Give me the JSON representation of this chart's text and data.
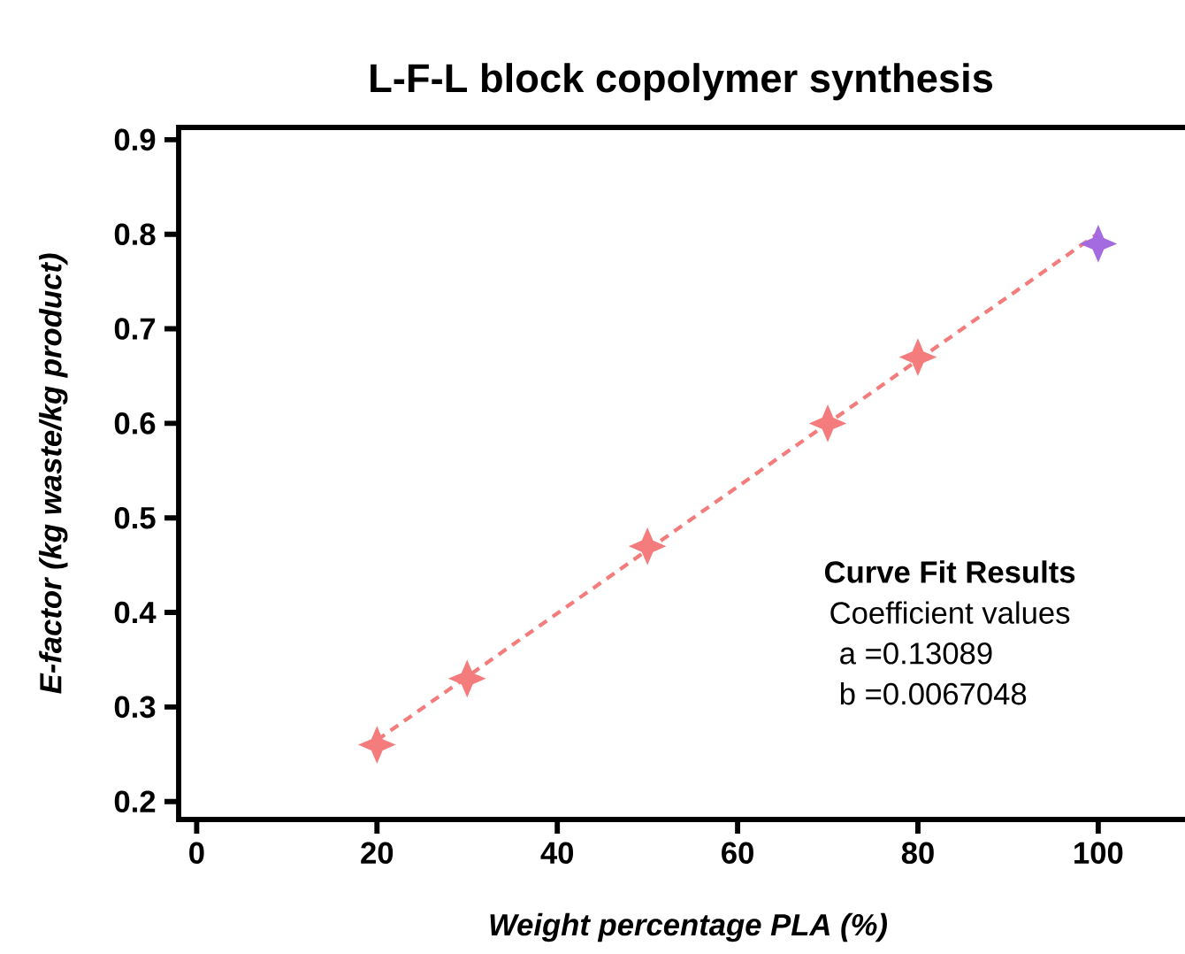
{
  "chart_data": {
    "type": "scatter",
    "title": "L-F-L block copolymer synthesis",
    "xlabel": "Weight percentage PLA (%)",
    "ylabel": "E-factor (kg waste/kg product)",
    "xlim": [
      -2,
      111
    ],
    "ylim": [
      0.181,
      0.913
    ],
    "xticks": [
      0,
      20,
      40,
      60,
      80,
      100
    ],
    "yticks": [
      0.2,
      0.3,
      0.4,
      0.5,
      0.6,
      0.7,
      0.8,
      0.9
    ],
    "marker": "star",
    "grid": false,
    "series": [
      {
        "type": "line",
        "color": "#f47c7c",
        "x": [
          20,
          100
        ],
        "values": [
          0.265,
          0.801
        ],
        "line_style": "dashed",
        "marker": "none"
      },
      {
        "color": "#f47c7c",
        "x": [
          20,
          30,
          50,
          70,
          80
        ],
        "values": [
          0.26,
          0.33,
          0.47,
          0.6,
          0.67
        ]
      },
      {
        "color": "#a46be0",
        "x": [
          100
        ],
        "values": [
          0.79
        ]
      }
    ],
    "annotations": [
      "**Curve Fit Results**",
      "Coefficient values",
      "a =0.13089",
      "b =0.0067048"
    ]
  }
}
